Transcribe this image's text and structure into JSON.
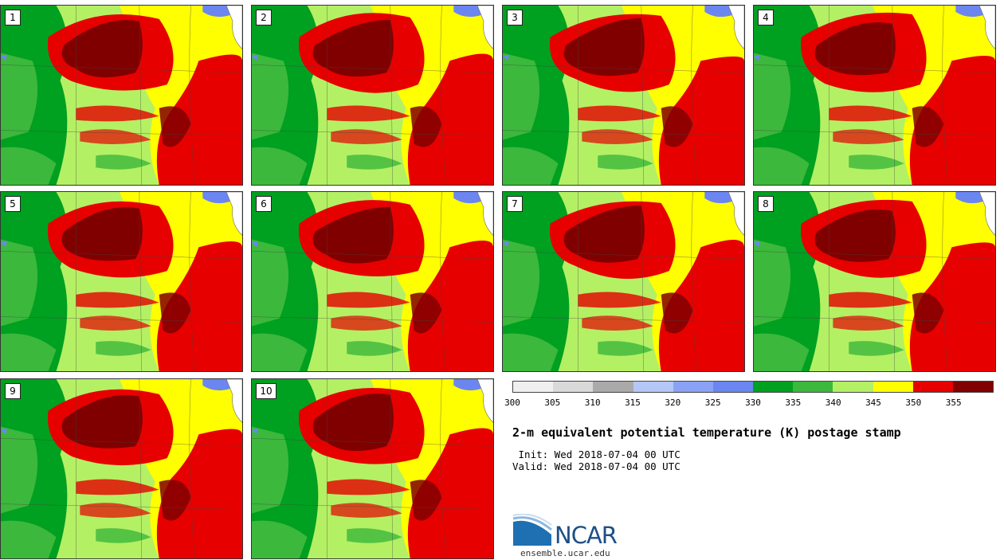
{
  "title": "2-m equivalent potential temperature (K) postage stamp",
  "init_line": " Init: Wed 2018-07-04 00 UTC",
  "valid_line": "Valid: Wed 2018-07-04 00 UTC",
  "website": "ensemble.ucar.edu",
  "logo_text": "NCAR",
  "members": [
    "1",
    "2",
    "3",
    "4",
    "5",
    "6",
    "7",
    "8",
    "9",
    "10"
  ],
  "colorbar": {
    "unit": "K",
    "ticks": [
      "300",
      "305",
      "310",
      "315",
      "320",
      "325",
      "330",
      "335",
      "340",
      "345",
      "350",
      "355"
    ],
    "colors": [
      "#f0f0f0",
      "#d9d9d9",
      "#aaaaaa",
      "#b4c8f7",
      "#8aa2f5",
      "#6b86f0",
      "#00a020",
      "#3cb83c",
      "#b4f064",
      "#ffff00",
      "#e60000",
      "#800000"
    ]
  }
}
